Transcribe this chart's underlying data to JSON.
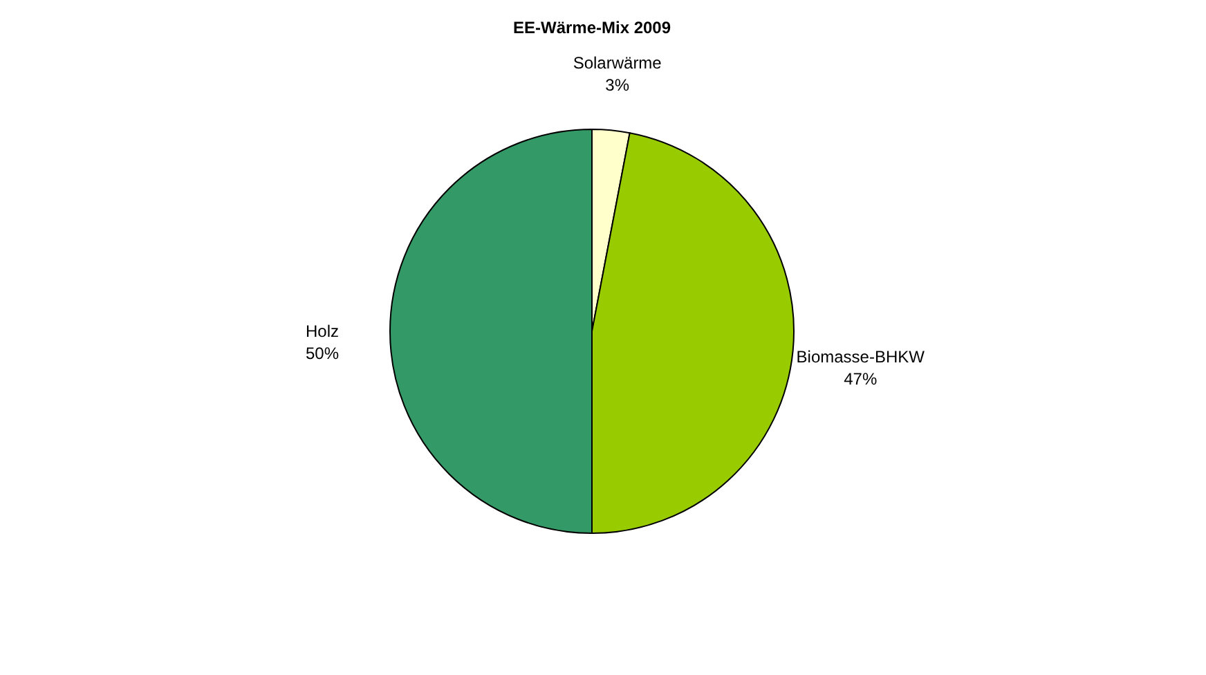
{
  "chart_data": {
    "type": "pie",
    "title": "EE-Wärme-Mix 2009",
    "categories": [
      "Solarwärme",
      "Biomasse-BHKW",
      "Holz"
    ],
    "values": [
      3,
      47,
      50
    ],
    "colors": [
      "#ffffcc",
      "#99cc00",
      "#339966"
    ],
    "value_labels": [
      "3%",
      "47%",
      "50%"
    ],
    "legend": false
  }
}
